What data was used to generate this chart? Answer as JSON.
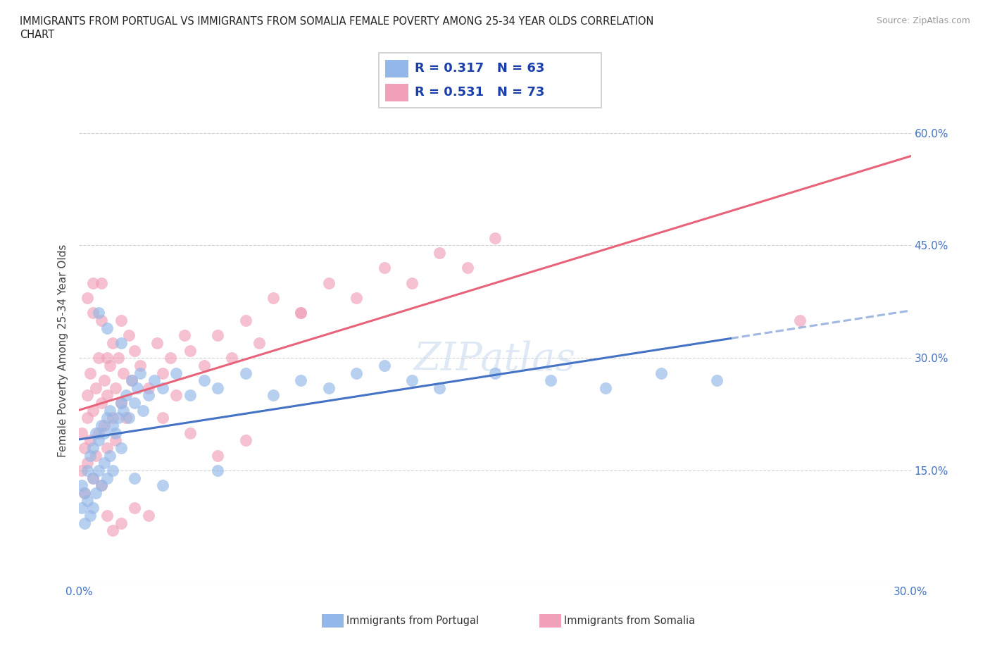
{
  "title_line1": "IMMIGRANTS FROM PORTUGAL VS IMMIGRANTS FROM SOMALIA FEMALE POVERTY AMONG 25-34 YEAR OLDS CORRELATION",
  "title_line2": "CHART",
  "source": "Source: ZipAtlas.com",
  "ylabel": "Female Poverty Among 25-34 Year Olds",
  "x_min": 0.0,
  "x_max": 0.3,
  "y_min": 0.0,
  "y_max": 0.62,
  "color_portugal": "#93b7e8",
  "color_somalia": "#f0a0b8",
  "color_trendline_portugal": "#4472c4",
  "color_trendline_somalia": "#e8637a",
  "color_axis_labels": "#4472c4",
  "watermark": "ZIPatlas",
  "portugal_x": [
    0.001,
    0.001,
    0.002,
    0.002,
    0.003,
    0.003,
    0.004,
    0.004,
    0.005,
    0.005,
    0.005,
    0.006,
    0.006,
    0.007,
    0.007,
    0.008,
    0.008,
    0.009,
    0.009,
    0.01,
    0.01,
    0.011,
    0.011,
    0.012,
    0.012,
    0.013,
    0.014,
    0.015,
    0.015,
    0.016,
    0.017,
    0.018,
    0.019,
    0.02,
    0.021,
    0.022,
    0.023,
    0.025,
    0.027,
    0.03,
    0.035,
    0.04,
    0.045,
    0.05,
    0.06,
    0.07,
    0.08,
    0.09,
    0.1,
    0.11,
    0.12,
    0.13,
    0.15,
    0.17,
    0.19,
    0.21,
    0.23,
    0.007,
    0.01,
    0.015,
    0.02,
    0.03,
    0.05
  ],
  "portugal_y": [
    0.13,
    0.1,
    0.12,
    0.08,
    0.15,
    0.11,
    0.17,
    0.09,
    0.18,
    0.14,
    0.1,
    0.2,
    0.12,
    0.19,
    0.15,
    0.21,
    0.13,
    0.2,
    0.16,
    0.22,
    0.14,
    0.23,
    0.17,
    0.21,
    0.15,
    0.2,
    0.22,
    0.24,
    0.18,
    0.23,
    0.25,
    0.22,
    0.27,
    0.24,
    0.26,
    0.28,
    0.23,
    0.25,
    0.27,
    0.26,
    0.28,
    0.25,
    0.27,
    0.26,
    0.28,
    0.25,
    0.27,
    0.26,
    0.28,
    0.29,
    0.27,
    0.26,
    0.28,
    0.27,
    0.26,
    0.28,
    0.27,
    0.36,
    0.34,
    0.32,
    0.14,
    0.13,
    0.15
  ],
  "somalia_x": [
    0.001,
    0.001,
    0.002,
    0.002,
    0.003,
    0.003,
    0.003,
    0.004,
    0.004,
    0.005,
    0.005,
    0.006,
    0.006,
    0.007,
    0.007,
    0.008,
    0.008,
    0.009,
    0.009,
    0.01,
    0.01,
    0.011,
    0.012,
    0.012,
    0.013,
    0.013,
    0.014,
    0.015,
    0.015,
    0.016,
    0.017,
    0.018,
    0.019,
    0.02,
    0.022,
    0.025,
    0.028,
    0.03,
    0.033,
    0.035,
    0.038,
    0.04,
    0.045,
    0.05,
    0.055,
    0.06,
    0.065,
    0.07,
    0.08,
    0.09,
    0.1,
    0.11,
    0.12,
    0.13,
    0.14,
    0.15,
    0.003,
    0.005,
    0.008,
    0.01,
    0.012,
    0.015,
    0.02,
    0.025,
    0.03,
    0.04,
    0.05,
    0.06,
    0.08,
    0.26,
    0.005,
    0.008,
    0.01
  ],
  "somalia_y": [
    0.15,
    0.2,
    0.12,
    0.18,
    0.22,
    0.16,
    0.25,
    0.19,
    0.28,
    0.14,
    0.23,
    0.26,
    0.17,
    0.2,
    0.3,
    0.24,
    0.13,
    0.27,
    0.21,
    0.25,
    0.18,
    0.29,
    0.22,
    0.32,
    0.19,
    0.26,
    0.3,
    0.24,
    0.35,
    0.28,
    0.22,
    0.33,
    0.27,
    0.31,
    0.29,
    0.26,
    0.32,
    0.28,
    0.3,
    0.25,
    0.33,
    0.31,
    0.29,
    0.33,
    0.3,
    0.35,
    0.32,
    0.38,
    0.36,
    0.4,
    0.38,
    0.42,
    0.4,
    0.44,
    0.42,
    0.46,
    0.38,
    0.36,
    0.4,
    0.09,
    0.07,
    0.08,
    0.1,
    0.09,
    0.22,
    0.2,
    0.17,
    0.19,
    0.36,
    0.35,
    0.4,
    0.35,
    0.3
  ]
}
